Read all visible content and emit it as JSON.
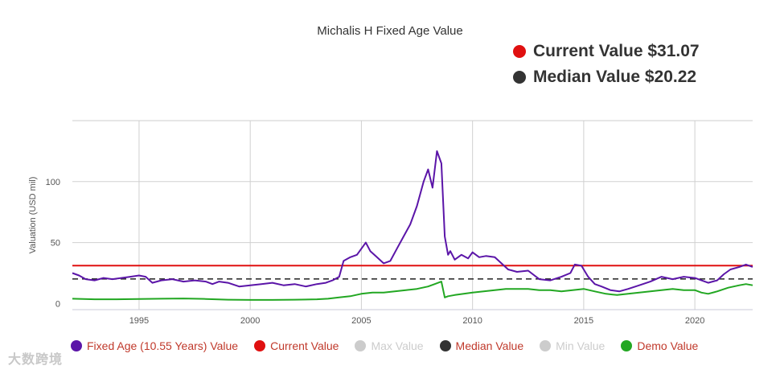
{
  "chart_data": {
    "type": "line",
    "title": "Michalis H Fixed Age Value",
    "ylabel": "Valuation (USD mil)",
    "xlabel": "",
    "xlim": [
      1992.0,
      2022.6
    ],
    "ylim": [
      -5,
      150
    ],
    "x_ticks": [
      1995,
      2000,
      2005,
      2010,
      2015,
      2020
    ],
    "y_ticks": [
      0,
      50,
      100
    ],
    "x_tick_labels": [
      "1995",
      "2000",
      "2005",
      "2010",
      "2015",
      "2020"
    ],
    "y_tick_labels": [
      "0",
      "50",
      "100"
    ],
    "grid": true,
    "legend_position": "bottom",
    "series": [
      {
        "name": "Fixed Age (10.55 Years) Value",
        "color": "#5b15a8",
        "x": [
          1992.0,
          1992.3,
          1992.6,
          1993.0,
          1993.4,
          1993.8,
          1994.2,
          1994.6,
          1995.0,
          1995.3,
          1995.6,
          1996.0,
          1996.5,
          1997.0,
          1997.5,
          1998.0,
          1998.3,
          1998.6,
          1999.0,
          1999.5,
          2000.0,
          2000.5,
          2001.0,
          2001.5,
          2002.0,
          2002.5,
          2003.0,
          2003.4,
          2003.7,
          2004.0,
          2004.2,
          2004.5,
          2004.8,
          2005.0,
          2005.2,
          2005.4,
          2005.7,
          2006.0,
          2006.3,
          2006.6,
          2006.9,
          2007.2,
          2007.5,
          2007.8,
          2008.0,
          2008.2,
          2008.4,
          2008.6,
          2008.75,
          2008.9,
          2009.0,
          2009.2,
          2009.5,
          2009.8,
          2010.0,
          2010.3,
          2010.6,
          2011.0,
          2011.3,
          2011.6,
          2012.0,
          2012.5,
          2013.0,
          2013.5,
          2014.0,
          2014.4,
          2014.6,
          2014.9,
          2015.2,
          2015.5,
          2015.8,
          2016.2,
          2016.6,
          2017.0,
          2017.5,
          2018.0,
          2018.5,
          2019.0,
          2019.5,
          2020.0,
          2020.3,
          2020.6,
          2021.0,
          2021.3,
          2021.6,
          2022.0,
          2022.3,
          2022.6
        ],
        "values": [
          25,
          23,
          20,
          19,
          21,
          20,
          21,
          22,
          23,
          22,
          17,
          19,
          20,
          18,
          19,
          18,
          16,
          18,
          17,
          14,
          15,
          16,
          17,
          15,
          16,
          14,
          16,
          17,
          19,
          22,
          35,
          38,
          40,
          45,
          50,
          43,
          38,
          33,
          35,
          45,
          55,
          65,
          80,
          100,
          110,
          95,
          125,
          115,
          55,
          40,
          43,
          36,
          40,
          37,
          42,
          38,
          39,
          38,
          33,
          28,
          26,
          27,
          20,
          19,
          22,
          25,
          32,
          31,
          22,
          16,
          14,
          11,
          10,
          12,
          15,
          18,
          22,
          20,
          22,
          21,
          19,
          17,
          19,
          24,
          28,
          30,
          32,
          30
        ]
      },
      {
        "name": "Current Value",
        "color": "#e01010",
        "x": [
          1992.0,
          2022.6
        ],
        "values": [
          31.07,
          31.07
        ]
      },
      {
        "name": "Max Value",
        "color": "#cccccc",
        "hidden": true,
        "x": [],
        "values": []
      },
      {
        "name": "Median Value",
        "color": "#333333",
        "dashed": true,
        "x": [
          1992.0,
          2022.6
        ],
        "values": [
          20.22,
          20.22
        ]
      },
      {
        "name": "Min Value",
        "color": "#cccccc",
        "hidden": true,
        "x": [],
        "values": []
      },
      {
        "name": "Demo Value",
        "color": "#22a722",
        "x": [
          1992.0,
          1993.0,
          1994.0,
          1995.0,
          1996.0,
          1997.0,
          1998.0,
          1999.0,
          2000.0,
          2001.0,
          2002.0,
          2003.0,
          2003.5,
          2004.0,
          2004.5,
          2005.0,
          2005.5,
          2006.0,
          2006.5,
          2007.0,
          2007.5,
          2008.0,
          2008.3,
          2008.6,
          2008.75,
          2008.9,
          2009.2,
          2009.6,
          2010.0,
          2010.5,
          2011.0,
          2011.5,
          2012.0,
          2012.5,
          2013.0,
          2013.5,
          2014.0,
          2014.5,
          2015.0,
          2015.5,
          2016.0,
          2016.5,
          2017.0,
          2017.5,
          2018.0,
          2018.5,
          2019.0,
          2019.5,
          2020.0,
          2020.3,
          2020.6,
          2021.0,
          2021.5,
          2022.0,
          2022.3,
          2022.6
        ],
        "values": [
          4,
          3.5,
          3.5,
          3.8,
          4,
          4.2,
          3.8,
          3.2,
          3,
          3,
          3.2,
          3.5,
          4,
          5,
          6,
          8,
          9,
          9,
          10,
          11,
          12,
          14,
          16,
          18,
          5,
          6,
          7,
          8,
          9,
          10,
          11,
          12,
          12,
          12,
          11,
          11,
          10,
          11,
          12,
          10,
          8,
          7,
          8,
          9,
          10,
          11,
          12,
          11,
          11,
          9,
          8,
          10,
          13,
          15,
          16,
          15
        ]
      }
    ]
  },
  "badges": {
    "current": {
      "label": "Current Value $31.07",
      "color": "#e01010"
    },
    "median": {
      "label": "Median Value $20.22",
      "color": "#333333"
    }
  },
  "legend": [
    {
      "label": "Fixed Age (10.55 Years) Value",
      "color": "#5b15a8",
      "hidden": false
    },
    {
      "label": "Current Value",
      "color": "#e01010",
      "hidden": false
    },
    {
      "label": "Max Value",
      "color": "#cccccc",
      "hidden": true
    },
    {
      "label": "Median Value",
      "color": "#333333",
      "hidden": false
    },
    {
      "label": "Min Value",
      "color": "#cccccc",
      "hidden": true
    },
    {
      "label": "Demo Value",
      "color": "#22a722",
      "hidden": false
    }
  ],
  "watermark": {
    "text": "大数跨境"
  }
}
